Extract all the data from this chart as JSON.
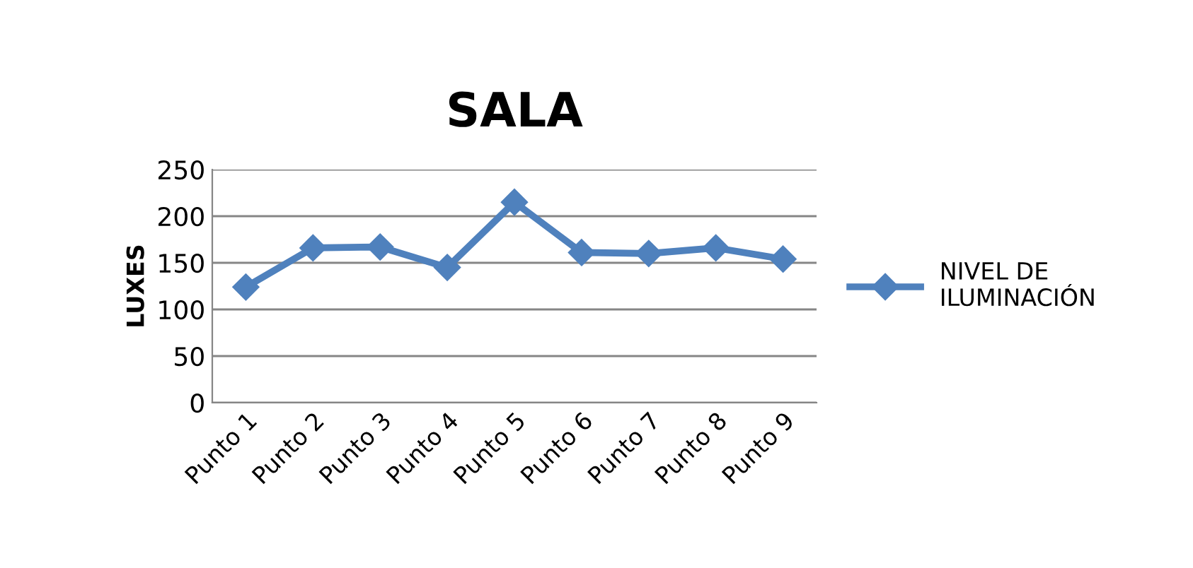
{
  "chart_data": {
    "type": "line",
    "title": "SALA",
    "ylabel": "LUXES",
    "categories": [
      "Punto 1",
      "Punto 2",
      "Punto 3",
      "Punto 4",
      "Punto 5",
      "Punto 6",
      "Punto 7",
      "Punto 8",
      "Punto 9"
    ],
    "series": [
      {
        "name": "NIVEL DE\nILUMINACIÓN",
        "color": "#4f81bd",
        "values": [
          124,
          166,
          167,
          145,
          215,
          161,
          160,
          166,
          154
        ]
      }
    ],
    "ylim": [
      0,
      250
    ],
    "yticks": [
      0,
      50,
      100,
      150,
      200,
      250
    ],
    "grid": "y",
    "legend": "right",
    "marker": "diamond",
    "line_style": "solid"
  }
}
